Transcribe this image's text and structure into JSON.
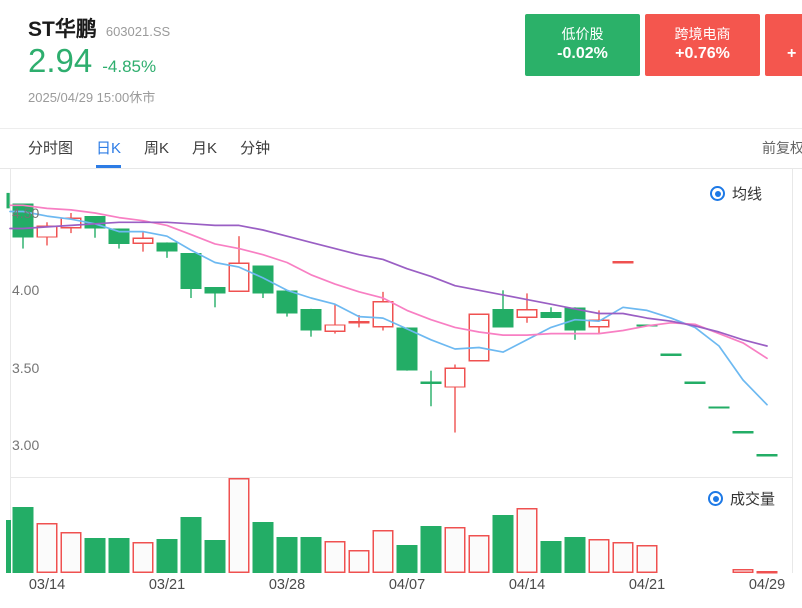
{
  "header": {
    "title": "ST华鹏",
    "code": "603021.SS",
    "price": "2.94",
    "change": "-4.85%",
    "timestamp": "2025/04/29 15:00休市"
  },
  "sector_tags": [
    {
      "name": "低价股",
      "value": "-0.02%",
      "color": "#2bb169",
      "partial": false
    },
    {
      "name": "跨境电商",
      "value": "+0.76%",
      "color": "#f4564e",
      "partial": false
    },
    {
      "name": "",
      "value": "+",
      "color": "#f4564e",
      "partial": true
    }
  ],
  "tabbar": {
    "tabs": [
      {
        "key": "time-share",
        "label": "分时图",
        "active": false
      },
      {
        "key": "daily-k",
        "label": "日K",
        "active": true
      },
      {
        "key": "weekly-k",
        "label": "周K",
        "active": false
      },
      {
        "key": "monthly-k",
        "label": "月K",
        "active": false
      },
      {
        "key": "minute",
        "label": "分钟",
        "active": false
      }
    ],
    "adjust_label": "前复权"
  },
  "legends": {
    "ma": "均线",
    "volume": "成交量"
  },
  "chart_data": {
    "type": "candlestick",
    "title": "ST华鹏 603021.SS 日K line with MA overlays and volume",
    "up_color": "#ef5150",
    "down_color": "#23ad66",
    "price_axis": {
      "ticks": [
        "4.50",
        "4.00",
        "3.50",
        "3.00"
      ]
    },
    "x_ticks": [
      {
        "index": 1,
        "label": "03/14"
      },
      {
        "index": 6,
        "label": "03/21"
      },
      {
        "index": 11,
        "label": "03/28"
      },
      {
        "index": 16,
        "label": "04/07"
      },
      {
        "index": 21,
        "label": "04/14"
      },
      {
        "index": 26,
        "label": "04/21"
      },
      {
        "index": 31,
        "label": "04/29"
      }
    ],
    "candles": [
      {
        "o": 4.56,
        "h": 4.56,
        "l": 4.27,
        "c": 4.34,
        "dir": "down"
      },
      {
        "o": 4.34,
        "h": 4.44,
        "l": 4.29,
        "c": 4.42,
        "dir": "up"
      },
      {
        "o": 4.4,
        "h": 4.5,
        "l": 4.37,
        "c": 4.47,
        "dir": "up"
      },
      {
        "o": 4.48,
        "h": 4.48,
        "l": 4.34,
        "c": 4.4,
        "dir": "down"
      },
      {
        "o": 4.4,
        "h": 4.4,
        "l": 4.27,
        "c": 4.3,
        "dir": "down"
      },
      {
        "o": 4.3,
        "h": 4.38,
        "l": 4.25,
        "c": 4.34,
        "dir": "up"
      },
      {
        "o": 4.31,
        "h": 4.31,
        "l": 4.21,
        "c": 4.25,
        "dir": "down"
      },
      {
        "o": 4.24,
        "h": 4.24,
        "l": 3.95,
        "c": 4.01,
        "dir": "down"
      },
      {
        "o": 4.02,
        "h": 4.02,
        "l": 3.89,
        "c": 3.98,
        "dir": "down"
      },
      {
        "o": 3.99,
        "h": 4.35,
        "l": 3.99,
        "c": 4.18,
        "dir": "up"
      },
      {
        "o": 4.16,
        "h": 4.16,
        "l": 3.95,
        "c": 3.98,
        "dir": "down"
      },
      {
        "o": 4.0,
        "h": 4.0,
        "l": 3.83,
        "c": 3.85,
        "dir": "down"
      },
      {
        "o": 3.88,
        "h": 3.88,
        "l": 3.7,
        "c": 3.74,
        "dir": "down"
      },
      {
        "o": 3.73,
        "h": 3.91,
        "l": 3.72,
        "c": 3.78,
        "dir": "up"
      },
      {
        "o": 3.79,
        "h": 3.84,
        "l": 3.76,
        "c": 3.8,
        "dir": "up"
      },
      {
        "o": 3.76,
        "h": 3.99,
        "l": 3.74,
        "c": 3.93,
        "dir": "up"
      },
      {
        "o": 3.76,
        "h": 3.76,
        "l": 3.48,
        "c": 3.48,
        "dir": "down"
      },
      {
        "o": 3.41,
        "h": 3.48,
        "l": 3.25,
        "c": 3.4,
        "dir": "down"
      },
      {
        "o": 3.37,
        "h": 3.52,
        "l": 3.08,
        "c": 3.5,
        "dir": "up"
      },
      {
        "o": 3.54,
        "h": 3.85,
        "l": 3.54,
        "c": 3.85,
        "dir": "up"
      },
      {
        "o": 3.88,
        "h": 4.0,
        "l": 3.76,
        "c": 3.76,
        "dir": "down"
      },
      {
        "o": 3.82,
        "h": 3.98,
        "l": 3.79,
        "c": 3.88,
        "dir": "up"
      },
      {
        "o": 3.86,
        "h": 3.89,
        "l": 3.82,
        "c": 3.82,
        "dir": "down"
      },
      {
        "o": 3.89,
        "h": 3.89,
        "l": 3.68,
        "c": 3.74,
        "dir": "down"
      },
      {
        "o": 3.76,
        "h": 3.87,
        "l": 3.72,
        "c": 3.81,
        "dir": "up"
      },
      {
        "o": 4.19,
        "h": 4.19,
        "l": 4.19,
        "c": 4.19,
        "dir": "up"
      },
      {
        "o": 3.78,
        "h": 3.78,
        "l": 3.78,
        "c": 3.78,
        "dir": "down"
      },
      {
        "o": 3.59,
        "h": 3.59,
        "l": 3.59,
        "c": 3.59,
        "dir": "down"
      },
      {
        "o": 3.41,
        "h": 3.41,
        "l": 3.41,
        "c": 3.41,
        "dir": "down"
      },
      {
        "o": 3.25,
        "h": 3.25,
        "l": 3.25,
        "c": 3.25,
        "dir": "down"
      },
      {
        "o": 3.09,
        "h": 3.09,
        "l": 3.09,
        "c": 3.09,
        "dir": "down"
      },
      {
        "o": 2.94,
        "h": 2.94,
        "l": 2.94,
        "c": 2.94,
        "dir": "down"
      }
    ],
    "left_partial": {
      "body_top": 4.63,
      "body_bottom": 4.53,
      "volume_h": 53
    },
    "volume_bars": [
      {
        "h": 66,
        "dir": "down"
      },
      {
        "h": 50,
        "dir": "up"
      },
      {
        "h": 41,
        "dir": "up"
      },
      {
        "h": 35,
        "dir": "down"
      },
      {
        "h": 35,
        "dir": "down"
      },
      {
        "h": 31,
        "dir": "up"
      },
      {
        "h": 34,
        "dir": "down"
      },
      {
        "h": 56,
        "dir": "down"
      },
      {
        "h": 33,
        "dir": "down"
      },
      {
        "h": 95,
        "dir": "up"
      },
      {
        "h": 51,
        "dir": "down"
      },
      {
        "h": 36,
        "dir": "down"
      },
      {
        "h": 36,
        "dir": "down"
      },
      {
        "h": 32,
        "dir": "up"
      },
      {
        "h": 23,
        "dir": "up"
      },
      {
        "h": 43,
        "dir": "up"
      },
      {
        "h": 28,
        "dir": "down"
      },
      {
        "h": 47,
        "dir": "down"
      },
      {
        "h": 46,
        "dir": "up"
      },
      {
        "h": 38,
        "dir": "up"
      },
      {
        "h": 58,
        "dir": "down"
      },
      {
        "h": 65,
        "dir": "up"
      },
      {
        "h": 32,
        "dir": "down"
      },
      {
        "h": 36,
        "dir": "down"
      },
      {
        "h": 34,
        "dir": "up"
      },
      {
        "h": 31,
        "dir": "up"
      },
      {
        "h": 28,
        "dir": "up"
      },
      {
        "h": 0,
        "dir": "up"
      },
      {
        "h": 0,
        "dir": "up"
      },
      {
        "h": 0,
        "dir": "up"
      },
      {
        "h": 4,
        "dir": "up"
      },
      {
        "h": 2,
        "dir": "up"
      }
    ],
    "ma_lines": [
      {
        "key": "ma5",
        "color": "#6db9f1",
        "values": [
          4.51,
          4.48,
          4.46,
          4.43,
          4.38,
          4.38,
          4.35,
          4.26,
          4.18,
          4.15,
          4.08,
          4.0,
          3.95,
          3.91,
          3.83,
          3.82,
          3.75,
          3.68,
          3.62,
          3.63,
          3.6,
          3.68,
          3.76,
          3.81,
          3.8,
          3.89,
          3.87,
          3.82,
          3.76,
          3.64,
          3.42,
          3.26
        ]
      },
      {
        "key": "ma10",
        "color": "#f87fc3",
        "values": [
          4.55,
          4.53,
          4.52,
          4.5,
          4.47,
          4.45,
          4.42,
          4.36,
          4.3,
          4.27,
          4.23,
          4.18,
          4.1,
          4.04,
          3.99,
          3.95,
          3.87,
          3.81,
          3.76,
          3.73,
          3.71,
          3.71,
          3.72,
          3.72,
          3.72,
          3.74,
          3.77,
          3.79,
          3.78,
          3.72,
          3.66,
          3.56
        ]
      },
      {
        "key": "ma20",
        "color": "#9a5fc4",
        "values": [
          4.4,
          4.41,
          4.42,
          4.43,
          4.44,
          4.44,
          4.44,
          4.43,
          4.42,
          4.42,
          4.39,
          4.35,
          4.31,
          4.27,
          4.23,
          4.2,
          4.14,
          4.09,
          4.03,
          4.0,
          3.97,
          3.94,
          3.91,
          3.88,
          3.85,
          3.85,
          3.82,
          3.8,
          3.77,
          3.73,
          3.68,
          3.64
        ]
      }
    ]
  }
}
